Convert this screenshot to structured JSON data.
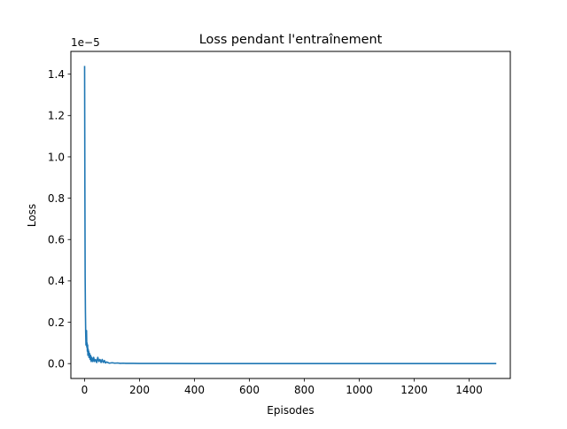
{
  "chart_data": {
    "type": "line",
    "title": "Loss pendant l'entraînement",
    "xlabel": "Episodes",
    "ylabel": "Loss",
    "y_offset_label": "1e−5",
    "xlim": [
      -50,
      1550
    ],
    "ylim": [
      -0.072,
      1.51
    ],
    "x_ticks": [
      0,
      200,
      400,
      600,
      800,
      1000,
      1200,
      1400
    ],
    "y_ticks": [
      0.0,
      0.2,
      0.4,
      0.6,
      0.8,
      1.0,
      1.2,
      1.4
    ],
    "y_tick_labels": [
      "0.0",
      "0.2",
      "0.4",
      "0.6",
      "0.8",
      "1.0",
      "1.2",
      "1.4"
    ],
    "grid": false,
    "legend": "none",
    "series": [
      {
        "color": "#1f77b4",
        "x": [
          0,
          1,
          2,
          3,
          4,
          5,
          6,
          7,
          8,
          9,
          10,
          11,
          12,
          13,
          14,
          15,
          16,
          18,
          20,
          22,
          24,
          26,
          28,
          30,
          33,
          36,
          40,
          44,
          48,
          52,
          56,
          60,
          64,
          68,
          72,
          76,
          80,
          90,
          100,
          110,
          120,
          130,
          140,
          150,
          175,
          200,
          250,
          300,
          400,
          500,
          600,
          700,
          800,
          900,
          1000,
          1100,
          1200,
          1300,
          1400,
          1499
        ],
        "values": [
          1.44,
          0.85,
          0.42,
          0.25,
          0.15,
          0.09,
          0.1,
          0.16,
          0.08,
          0.1,
          0.06,
          0.09,
          0.04,
          0.07,
          0.05,
          0.06,
          0.03,
          0.05,
          0.02,
          0.04,
          0.01,
          0.03,
          0.02,
          0.01,
          0.03,
          0.01,
          0.02,
          0.005,
          0.03,
          0.01,
          0.02,
          0.005,
          0.02,
          0.005,
          0.015,
          0.003,
          0.008,
          0.002,
          0.004,
          0.002,
          0.003,
          0.001,
          0.002,
          0.001,
          0.001,
          0.0008,
          0.0005,
          0.0004,
          0.0003,
          0.0002,
          0.0002,
          0.0001,
          0.0001,
          0.0001,
          0.0001,
          0.0001,
          0.0001,
          0.0001,
          0.0001,
          0.0001
        ]
      }
    ]
  }
}
